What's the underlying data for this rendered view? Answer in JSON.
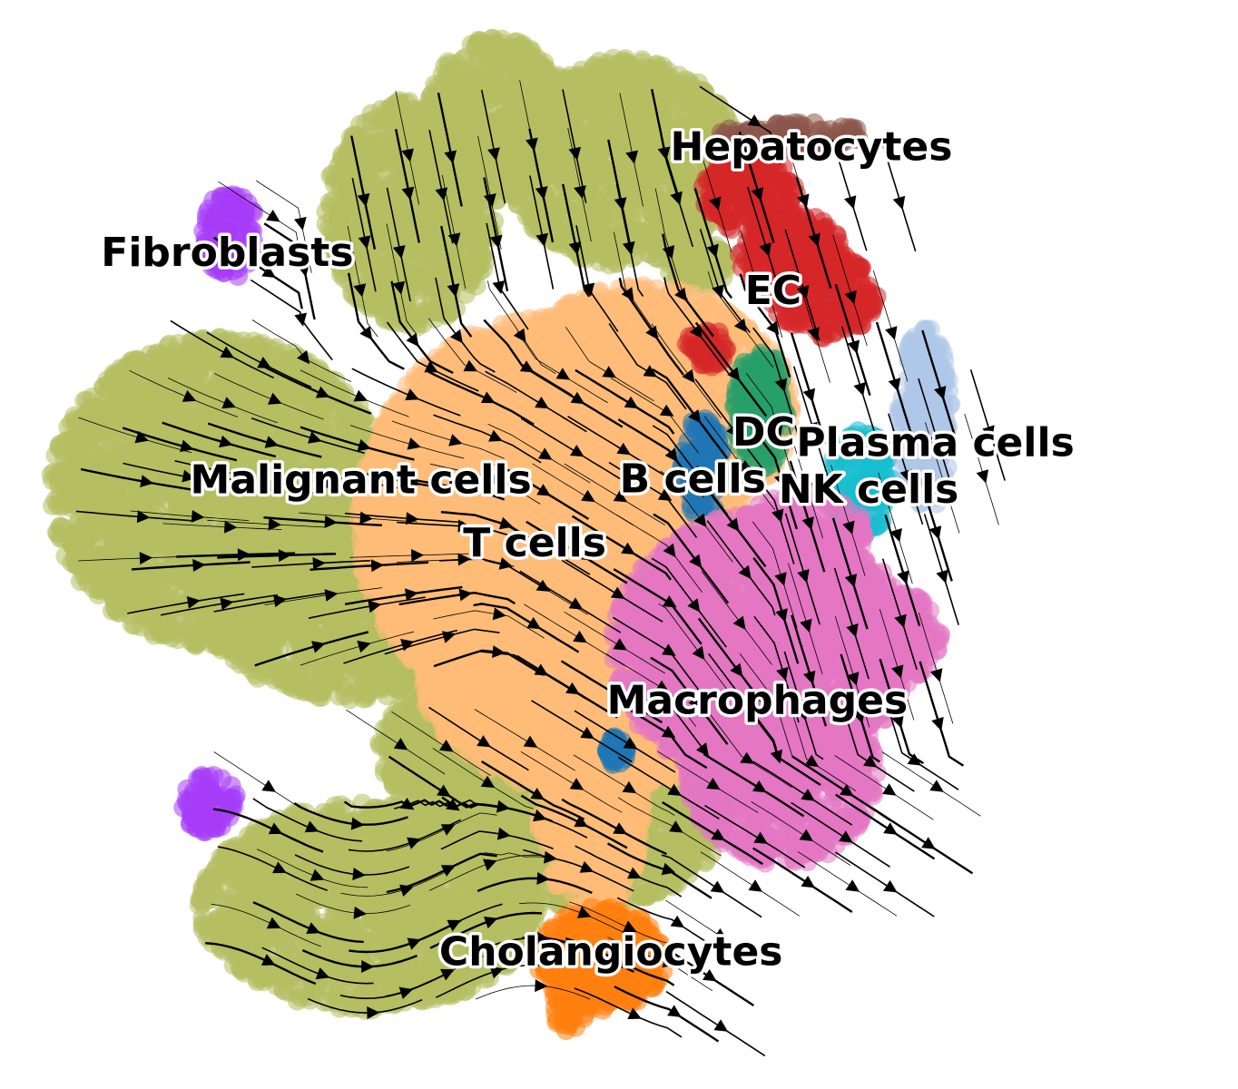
{
  "chart_data": {
    "type": "scatter",
    "title": "",
    "xlabel": "",
    "ylabel": "",
    "grid": false,
    "frame": false,
    "legend": "none",
    "overlay": "velocity-streamlines",
    "xlim": [
      0,
      100
    ],
    "ylim": [
      0,
      100
    ],
    "clusters": [
      {
        "name": "Fibroblasts",
        "color": "#a53df7",
        "blobs": [
          [
            19,
            80,
            2.6,
            4.2
          ],
          [
            17,
            25,
            2.6,
            2.8
          ]
        ],
        "label": [
          18.7,
          78
        ]
      },
      {
        "name": "Malignant cells",
        "color": "#b5bd61",
        "blobs": [
          [
            36,
            82,
            8,
            11
          ],
          [
            44,
            91,
            6.5,
            8
          ],
          [
            56,
            87,
            11,
            10
          ],
          [
            18,
            55,
            16,
            15
          ],
          [
            30,
            45,
            14,
            10
          ],
          [
            32,
            15,
            16,
            10
          ],
          [
            52,
            24,
            14,
            9
          ],
          [
            42,
            30,
            9,
            7
          ],
          [
            63,
            77,
            3,
            2.5
          ]
        ],
        "label": [
          31.3,
          56
        ]
      },
      {
        "name": "T cells",
        "color": "#ffbb78",
        "blobs": [
          [
            49,
            52,
            18,
            20
          ],
          [
            58,
            63,
            14,
            12
          ],
          [
            53,
            37,
            16,
            11
          ],
          [
            53,
            25,
            5,
            11
          ]
        ],
        "label": [
          47.7,
          49.9
        ]
      },
      {
        "name": "Hepatocytes",
        "color": "#8c564b",
        "blobs": [
          [
            72,
            89.5,
            7,
            1.3
          ]
        ],
        "label": [
          73.8,
          88.2
        ]
      },
      {
        "name": "EC",
        "color": "#d62728",
        "blobs": [
          [
            68,
            84,
            4.5,
            4
          ],
          [
            72,
            78,
            5,
            4
          ],
          [
            75,
            74,
            5,
            4
          ],
          [
            64,
            69,
            2,
            2
          ]
        ],
        "label": [
          70.2,
          74.3
        ]
      },
      {
        "name": "DC",
        "color": "#279e68",
        "blobs": [
          [
            69,
            63,
            2.5,
            6
          ]
        ],
        "label": [
          69.3,
          60.6
        ]
      },
      {
        "name": "B cells",
        "color": "#1f77b4",
        "blobs": [
          [
            63.5,
            57.5,
            2,
            5
          ],
          [
            55.5,
            30,
            1,
            1.5
          ]
        ],
        "label": [
          62.6,
          56.1
        ]
      },
      {
        "name": "NK cells",
        "color": "#17becf",
        "blobs": [
          [
            78.5,
            56,
            3,
            5
          ]
        ],
        "label": [
          79.2,
          55.1
        ]
      },
      {
        "name": "Plasma cells",
        "color": "#aec7e8",
        "blobs": [
          [
            84.5,
            62,
            2.5,
            9
          ]
        ],
        "label": [
          85.5,
          59.6
        ]
      },
      {
        "name": "Macrophages",
        "color": "#e377c2",
        "blobs": [
          [
            69,
            40,
            14,
            13
          ],
          [
            71,
            28,
            9,
            9
          ],
          [
            80,
            41,
            6,
            5
          ],
          [
            73,
            51,
            6,
            4
          ]
        ],
        "label": [
          68.7,
          34.7
        ]
      },
      {
        "name": "Cholangiocytes",
        "color": "#ff7f0e",
        "blobs": [
          [
            54,
            10,
            6,
            5
          ],
          [
            51,
            6,
            2,
            3
          ]
        ],
        "label": [
          54.9,
          10.4
        ]
      }
    ]
  }
}
